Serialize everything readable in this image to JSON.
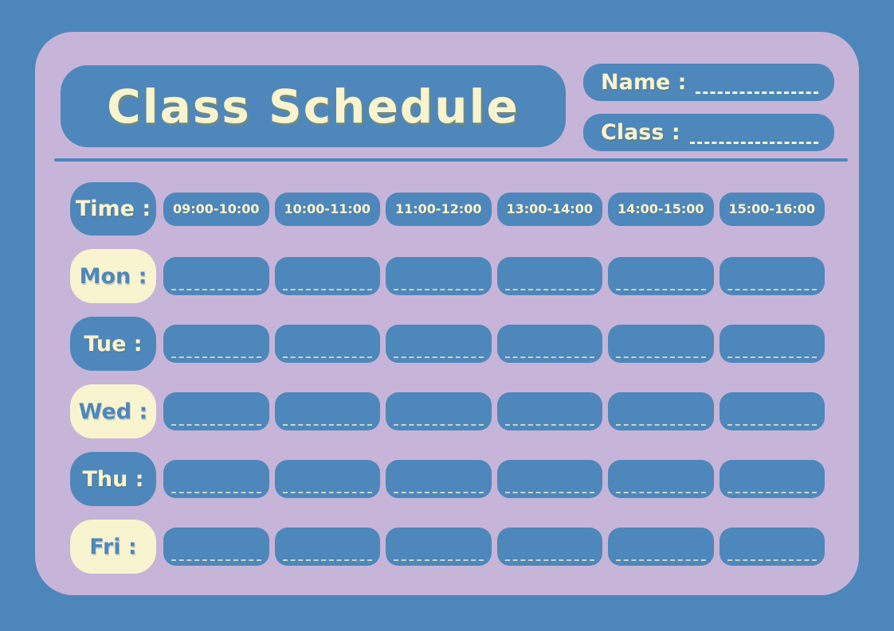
{
  "colors": {
    "background": "#4d86ba",
    "card": "#c6b5d8",
    "box_blue": "#4e87bb",
    "cream": "#f8f4cf",
    "title_shadow": "#868c5a"
  },
  "header": {
    "title": "Class Schedule",
    "name_label": "Name :",
    "class_label": "Class :"
  },
  "schedule": {
    "time_label": "Time :",
    "time_slots": [
      "09:00-10:00",
      "10:00-11:00",
      "11:00-12:00",
      "13:00-14:00",
      "14:00-15:00",
      "15:00-16:00"
    ],
    "days": [
      {
        "label": "Mon :",
        "variant": "cream"
      },
      {
        "label": "Tue :",
        "variant": "blue"
      },
      {
        "label": "Wed :",
        "variant": "cream"
      },
      {
        "label": "Thu :",
        "variant": "blue"
      },
      {
        "label": "Fri :",
        "variant": "cream"
      }
    ]
  }
}
